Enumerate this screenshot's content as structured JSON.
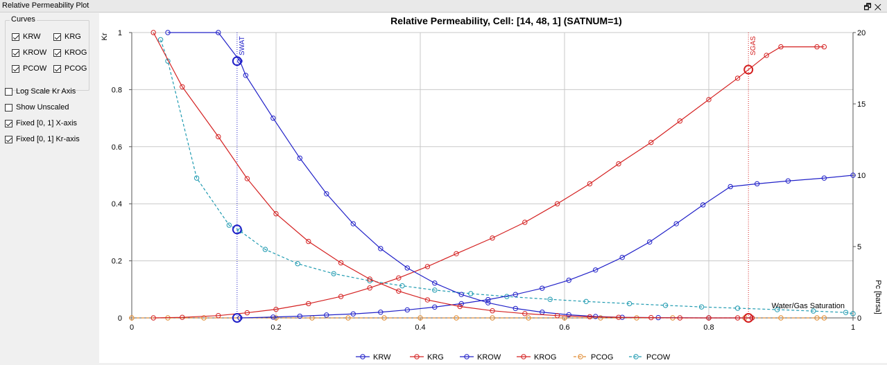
{
  "window": {
    "title": "Relative Permeability Plot",
    "restore_icon": "restore-icon",
    "close_icon": "close-icon"
  },
  "controls": {
    "curves_group_label": "Curves",
    "curve_checkboxes": [
      {
        "label": "KRW",
        "checked": true
      },
      {
        "label": "KRG",
        "checked": true
      },
      {
        "label": "KROW",
        "checked": true
      },
      {
        "label": "KROG",
        "checked": true
      },
      {
        "label": "PCOW",
        "checked": true
      },
      {
        "label": "PCOG",
        "checked": true
      }
    ],
    "options": [
      {
        "label": "Log Scale Kr Axis",
        "checked": false
      },
      {
        "label": "Show Unscaled",
        "checked": false
      },
      {
        "label": "Fixed [0, 1] X-axis",
        "checked": true
      },
      {
        "label": "Fixed [0, 1] Kr-axis",
        "checked": true
      }
    ]
  },
  "chart_data": {
    "type": "line",
    "title": "Relative Permeability, Cell: [14, 48, 1] (SATNUM=1)",
    "xlabel": "Water/Gas Saturation",
    "ylabel": "Kr",
    "y2label": "Pc [barsa]",
    "xlim": [
      0,
      1
    ],
    "ylim": [
      0,
      1
    ],
    "y2lim": [
      0,
      20
    ],
    "xticks": [
      "0",
      "0.2",
      "0.4",
      "0.6",
      "0.8",
      "1"
    ],
    "yticks": [
      "0",
      "0.2",
      "0.4",
      "0.6",
      "0.8",
      "1"
    ],
    "y2ticks": [
      "0",
      "5",
      "10",
      "15",
      "20"
    ],
    "grid": true,
    "legend_position": "bottom",
    "series": [
      {
        "name": "KRW",
        "axis": "kr",
        "color": "#2020c8",
        "dashed": false,
        "x": [
          0.15,
          0.196,
          0.233,
          0.27,
          0.307,
          0.345,
          0.382,
          0.42,
          0.457,
          0.494,
          0.532,
          0.569,
          0.606,
          0.643,
          0.68,
          0.718,
          0.755,
          0.792,
          0.83,
          0.867,
          0.91,
          0.96,
          1.0
        ],
        "y": [
          0.0,
          0.003,
          0.006,
          0.01,
          0.014,
          0.02,
          0.028,
          0.038,
          0.05,
          0.064,
          0.082,
          0.104,
          0.132,
          0.168,
          0.212,
          0.266,
          0.33,
          0.396,
          0.46,
          0.47,
          0.48,
          0.49,
          0.5
        ]
      },
      {
        "name": "KRG",
        "axis": "kr",
        "color": "#d42020",
        "dashed": false,
        "x": [
          0.03,
          0.07,
          0.12,
          0.16,
          0.2,
          0.245,
          0.29,
          0.33,
          0.37,
          0.41,
          0.45,
          0.5,
          0.545,
          0.59,
          0.635,
          0.675,
          0.72,
          0.76,
          0.8,
          0.84,
          0.88,
          0.9,
          0.95,
          0.96
        ],
        "y": [
          0.0,
          0.002,
          0.008,
          0.018,
          0.03,
          0.05,
          0.075,
          0.105,
          0.14,
          0.18,
          0.225,
          0.28,
          0.335,
          0.4,
          0.47,
          0.54,
          0.615,
          0.69,
          0.765,
          0.84,
          0.92,
          0.95,
          0.95,
          0.95
        ]
      },
      {
        "name": "KROW",
        "axis": "kr",
        "color": "#2020c8",
        "dashed": false,
        "x": [
          0.05,
          0.12,
          0.15,
          0.158,
          0.196,
          0.233,
          0.27,
          0.307,
          0.345,
          0.382,
          0.42,
          0.457,
          0.494,
          0.532,
          0.569,
          0.606,
          0.643,
          0.68,
          0.73,
          0.8,
          0.86
        ],
        "y": [
          1.0,
          1.0,
          0.9,
          0.85,
          0.7,
          0.56,
          0.435,
          0.33,
          0.243,
          0.175,
          0.122,
          0.082,
          0.053,
          0.033,
          0.02,
          0.011,
          0.005,
          0.002,
          0.001,
          0.0,
          0.0
        ]
      },
      {
        "name": "KROG",
        "axis": "kr",
        "color": "#d42020",
        "dashed": false,
        "x": [
          0.03,
          0.07,
          0.12,
          0.16,
          0.2,
          0.245,
          0.29,
          0.33,
          0.37,
          0.41,
          0.455,
          0.5,
          0.545,
          0.59,
          0.635,
          0.675,
          0.72,
          0.76,
          0.8,
          0.84,
          0.86
        ],
        "y": [
          1.0,
          0.81,
          0.635,
          0.488,
          0.365,
          0.268,
          0.193,
          0.136,
          0.094,
          0.063,
          0.04,
          0.025,
          0.015,
          0.008,
          0.004,
          0.002,
          0.001,
          0.0,
          0.0,
          0.0,
          0.0
        ]
      },
      {
        "name": "PCOG",
        "axis": "pc",
        "color": "#e08a30",
        "dashed": true,
        "x": [
          0.0,
          0.05,
          0.1,
          0.15,
          0.2,
          0.25,
          0.3,
          0.35,
          0.4,
          0.45,
          0.5,
          0.55,
          0.6,
          0.65,
          0.7,
          0.75,
          0.8,
          0.85,
          0.9,
          0.95,
          0.96
        ],
        "y": [
          0,
          0,
          0,
          0,
          0,
          0,
          0,
          0,
          0,
          0,
          0,
          0,
          0,
          0,
          0,
          0,
          0,
          0,
          0,
          0,
          0
        ]
      },
      {
        "name": "PCOW",
        "axis": "pc",
        "color": "#1e9ab0",
        "dashed": true,
        "x": [
          0.04,
          0.05,
          0.09,
          0.135,
          0.15,
          0.185,
          0.23,
          0.28,
          0.33,
          0.375,
          0.42,
          0.47,
          0.52,
          0.58,
          0.63,
          0.69,
          0.74,
          0.79,
          0.84,
          0.895,
          0.945,
          0.99,
          1.0
        ],
        "y": [
          19.5,
          18.0,
          9.8,
          6.5,
          6.1,
          4.8,
          3.8,
          3.1,
          2.6,
          2.25,
          1.95,
          1.7,
          1.5,
          1.3,
          1.15,
          1.0,
          0.88,
          0.77,
          0.68,
          0.58,
          0.48,
          0.38,
          0.3
        ]
      }
    ],
    "vertical_markers": [
      {
        "label": "SWAT",
        "x": 0.146,
        "color": "#2020c8"
      },
      {
        "label": "SGAS",
        "x": 0.855,
        "color": "#d42020"
      }
    ],
    "highlight_points": [
      {
        "x": 0.146,
        "y": 0.9,
        "axis": "kr",
        "color": "#2020c8"
      },
      {
        "x": 0.146,
        "y": 0.0,
        "axis": "kr",
        "color": "#2020c8"
      },
      {
        "x": 0.146,
        "y": 6.2,
        "axis": "pc",
        "color": "#2020c8"
      },
      {
        "x": 0.855,
        "y": 0.87,
        "axis": "kr",
        "color": "#d42020"
      },
      {
        "x": 0.855,
        "y": 0.0,
        "axis": "kr",
        "color": "#d42020"
      }
    ]
  }
}
